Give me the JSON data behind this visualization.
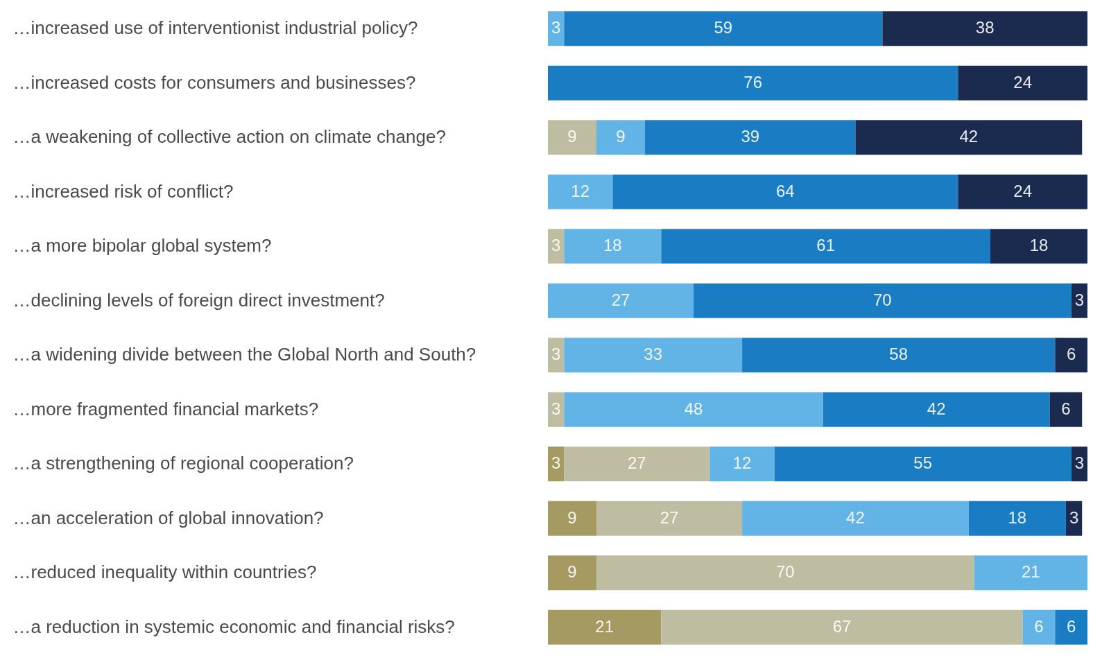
{
  "chart_data": {
    "type": "bar",
    "orientation": "horizontal",
    "stacked": true,
    "data_labels": true,
    "categories": [
      "…increased use of interventionist industrial policy?",
      "…increased costs for consumers and businesses?",
      "…a weakening of collective action on climate change?",
      "…increased risk of conflict?",
      "…a more bipolar global system?",
      "…declining levels of foreign direct investment?",
      "…a widening divide between the Global North and South?",
      "…more fragmented financial markets?",
      "…a strengthening of regional cooperation?",
      "…an acceleration of global innovation?",
      "…reduced inequality within countries?",
      "…a reduction in systemic economic and financial risks?"
    ],
    "series": [
      {
        "color": "#a59b62",
        "values": [
          null,
          null,
          null,
          null,
          null,
          null,
          null,
          null,
          3,
          9,
          9,
          21
        ]
      },
      {
        "color": "#bebca1",
        "values": [
          null,
          null,
          9,
          null,
          3,
          null,
          3,
          3,
          27,
          27,
          70,
          67
        ]
      },
      {
        "color": "#62b3e6",
        "values": [
          3,
          null,
          9,
          12,
          18,
          27,
          33,
          48,
          12,
          42,
          21,
          6
        ]
      },
      {
        "color": "#1a7dc4",
        "values": [
          59,
          76,
          39,
          64,
          61,
          70,
          58,
          42,
          55,
          18,
          null,
          6
        ]
      },
      {
        "color": "#1b2b4f",
        "values": [
          38,
          24,
          42,
          24,
          18,
          3,
          6,
          6,
          3,
          3,
          null,
          null
        ]
      }
    ]
  }
}
